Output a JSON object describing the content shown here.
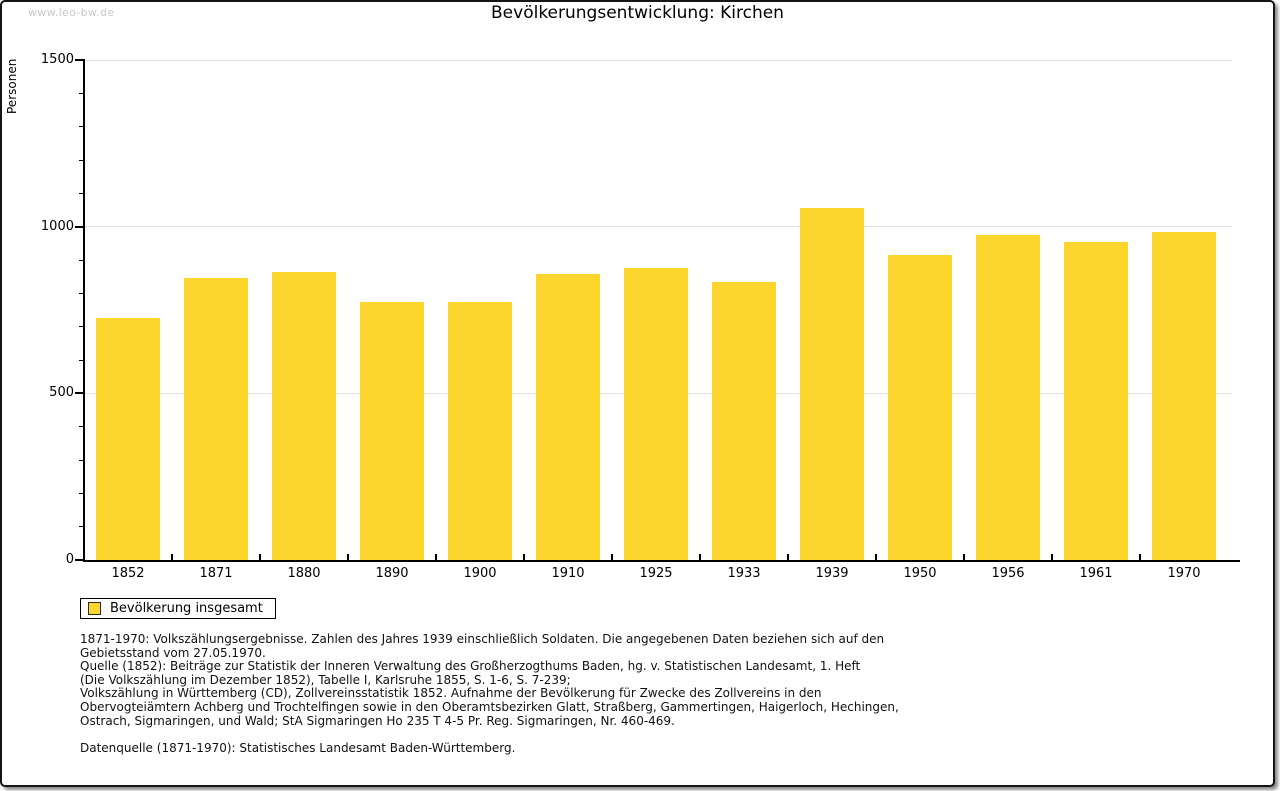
{
  "watermark": "www.leo-bw.de",
  "title": "Bevölkerungsentwicklung: Kirchen",
  "legend": {
    "label": "Bevölkerung insgesamt"
  },
  "colors": {
    "bar": "#fcd52d",
    "grid": "#e3e3e3",
    "axis": "#000000",
    "watermark": "#c9c9c9"
  },
  "chart_data": {
    "type": "bar",
    "title": "Bevölkerungsentwicklung: Kirchen",
    "xlabel": "",
    "ylabel": "Personen",
    "categories": [
      "1852",
      "1871",
      "1880",
      "1890",
      "1900",
      "1910",
      "1925",
      "1933",
      "1939",
      "1950",
      "1956",
      "1961",
      "1970"
    ],
    "values": [
      725,
      845,
      865,
      775,
      775,
      857,
      875,
      833,
      1056,
      914,
      975,
      953,
      984
    ],
    "series_name": "Bevölkerung insgesamt",
    "ylim": [
      0,
      1500
    ],
    "ytick_major": [
      0,
      500,
      1000,
      1500
    ],
    "ytick_minor_step": 100,
    "grid": "horizontal-light",
    "legend_position": "bottom-left",
    "bar_color": "#fcd52d"
  },
  "footnotes": {
    "lines": [
      "1871-1970: Volkszählungsergebnisse. Zahlen des Jahres 1939 einschließlich Soldaten. Die angegebenen Daten beziehen sich auf den",
      "Gebietsstand vom 27.05.1970.",
      "Quelle (1852): Beiträge zur Statistik der Inneren Verwaltung des Großherzogthums Baden, hg. v. Statistischen Landesamt, 1. Heft",
      "(Die Volkszählung im Dezember 1852), Tabelle I, Karlsruhe 1855, S. 1-6, S. 7-239;",
      "Volkszählung in Württemberg (CD), Zollvereinsstatistik 1852. Aufnahme der Bevölkerung für Zwecke des Zollvereins in den",
      "Obervogteiämtern Achberg und Trochtelfingen sowie in den Oberamtsbezirken Glatt, Straßberg, Gammertingen, Haigerloch, Hechingen,",
      "Ostrach, Sigmaringen, und Wald; StA Sigmaringen Ho 235 T 4-5 Pr. Reg. Sigmaringen, Nr. 460-469."
    ],
    "datasource": "Datenquelle (1871-1970): Statistisches Landesamt Baden-Württemberg."
  }
}
